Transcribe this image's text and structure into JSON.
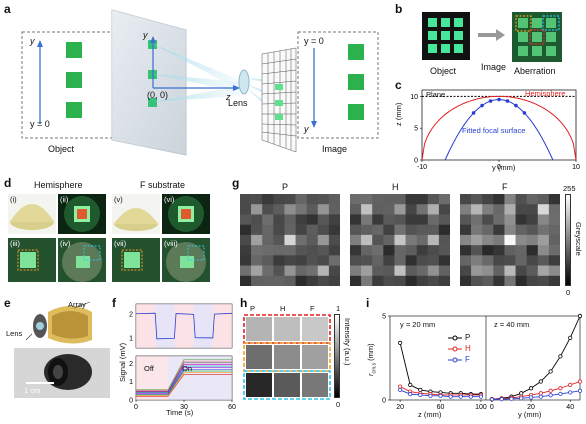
{
  "panels": {
    "a": {
      "letter": "a",
      "object_label": "Object",
      "image_label": "Image",
      "lens_label": "Lens",
      "origin_label": "(0, 0)",
      "y_label": "y",
      "z_label": "z",
      "y0_label": "y = 0",
      "colors": {
        "green": "#2bb24c",
        "axis": "#3b6fd1"
      }
    },
    "b": {
      "letter": "b",
      "object_label": "Object",
      "image_label": "Image",
      "aberration_label": "Aberration"
    },
    "c": {
      "letter": "c",
      "plane_label": "Plane",
      "hemisphere_label": "Hemisphere",
      "fitted_label": "Fitted focal surface",
      "ylabel": "z (mm)",
      "xlabel": "y (mm)",
      "xticks": [
        "-10",
        "0",
        "10"
      ],
      "yticks": [
        "0",
        "5",
        "10"
      ]
    },
    "d": {
      "letter": "d",
      "hemisphere_label": "Hemisphere",
      "fsub_label": "F substrate",
      "tags": [
        "(i)",
        "(ii)",
        "(iii)",
        "(iv)",
        "(v)",
        "(vi)",
        "(vii)",
        "(viii)"
      ]
    },
    "e": {
      "letter": "e",
      "array_label": "Array",
      "lens_label": "Lens",
      "scale_label": "1 cm"
    },
    "f": {
      "letter": "f",
      "ylabel": "Signal (mV)",
      "xlabel": "Time (s)",
      "xticks": [
        "0",
        "30",
        "60"
      ],
      "top_yticks": [
        "1",
        "2"
      ],
      "bottom_yticks": [
        "0",
        "1",
        "2"
      ],
      "off_label": "Off",
      "on_label": "On"
    },
    "g": {
      "letter": "g",
      "titles": [
        "P",
        "H",
        "F"
      ],
      "colorbar_label": "Greyscale",
      "cb_max": "255",
      "cb_min": "0"
    },
    "h": {
      "letter": "h",
      "columns": [
        "P",
        "H",
        "F"
      ],
      "colorbar_label": "Intensity (a.u.)",
      "cb_max": "1",
      "cb_min": "0"
    },
    "i": {
      "letter": "i",
      "ylabel": "r",
      "ylabel_sub": "cm,s",
      "ylabel_unit": " (mm)",
      "left_title": "y = 20 mm",
      "right_title": "z = 40 mm",
      "left_xlabel": "z (mm)",
      "right_xlabel": "y (mm)",
      "left_xticks": [
        "20",
        "60",
        "100"
      ],
      "right_xticks": [
        "0",
        "20",
        "40"
      ],
      "yticks": [
        "0",
        "5"
      ],
      "legend": [
        "P",
        "H",
        "F"
      ],
      "colors": {
        "P": "#000000",
        "H": "#e02020",
        "F": "#2a3fd1"
      }
    }
  },
  "chart_data": [
    {
      "type": "line",
      "title": "",
      "xlabel": "y (mm)",
      "ylabel": "z (mm)",
      "xlim": [
        -10,
        10
      ],
      "ylim": [
        0,
        11
      ],
      "series": [
        {
          "name": "Plane",
          "x": [
            -10,
            10
          ],
          "y": [
            10,
            10
          ]
        },
        {
          "name": "Hemisphere",
          "x": [
            -10,
            -8,
            -6,
            -4,
            -2,
            0,
            2,
            4,
            6,
            8,
            10
          ],
          "y": [
            0,
            6,
            8,
            9.2,
            9.8,
            10,
            9.8,
            9.2,
            8,
            6,
            0
          ]
        },
        {
          "name": "Fitted focal surface",
          "x": [
            -7,
            -5,
            -3,
            -1,
            0,
            1,
            3,
            5,
            7
          ],
          "y": [
            0,
            4.5,
            7.8,
            9.3,
            9.5,
            9.3,
            7.8,
            4.5,
            0
          ]
        }
      ]
    },
    {
      "type": "line",
      "title": "",
      "xlabel": "z (mm)",
      "ylabel": "r cm,s (mm)",
      "xlim": [
        10,
        105
      ],
      "ylim": [
        0,
        5
      ],
      "series": [
        {
          "name": "P",
          "x": [
            20,
            30,
            40,
            50,
            60,
            70,
            80,
            90,
            100
          ],
          "y": [
            3.4,
            0.9,
            0.6,
            0.5,
            0.45,
            0.4,
            0.4,
            0.35,
            0.35
          ]
        },
        {
          "name": "H",
          "x": [
            20,
            30,
            40,
            50,
            60,
            70,
            80,
            90,
            100
          ],
          "y": [
            0.8,
            0.5,
            0.4,
            0.35,
            0.3,
            0.3,
            0.3,
            0.3,
            0.3
          ]
        },
        {
          "name": "F",
          "x": [
            20,
            30,
            40,
            50,
            60,
            70,
            80,
            90,
            100
          ],
          "y": [
            0.6,
            0.35,
            0.3,
            0.25,
            0.25,
            0.2,
            0.2,
            0.2,
            0.2
          ]
        }
      ]
    },
    {
      "type": "line",
      "title": "",
      "xlabel": "y (mm)",
      "ylabel": "r cm,s (mm)",
      "xlim": [
        -3,
        45
      ],
      "ylim": [
        0,
        5
      ],
      "series": [
        {
          "name": "P",
          "x": [
            0,
            5,
            10,
            15,
            20,
            25,
            30,
            35,
            40,
            45
          ],
          "y": [
            0.05,
            0.1,
            0.2,
            0.4,
            0.7,
            1.1,
            1.7,
            2.6,
            3.7,
            5.0
          ]
        },
        {
          "name": "H",
          "x": [
            0,
            5,
            10,
            15,
            20,
            25,
            30,
            35,
            40,
            45
          ],
          "y": [
            0.05,
            0.08,
            0.12,
            0.2,
            0.3,
            0.4,
            0.55,
            0.7,
            0.9,
            1.1
          ]
        },
        {
          "name": "F",
          "x": [
            0,
            5,
            10,
            15,
            20,
            25,
            30,
            35,
            40,
            45
          ],
          "y": [
            0.03,
            0.05,
            0.07,
            0.1,
            0.15,
            0.2,
            0.28,
            0.36,
            0.45,
            0.55
          ]
        }
      ]
    }
  ]
}
